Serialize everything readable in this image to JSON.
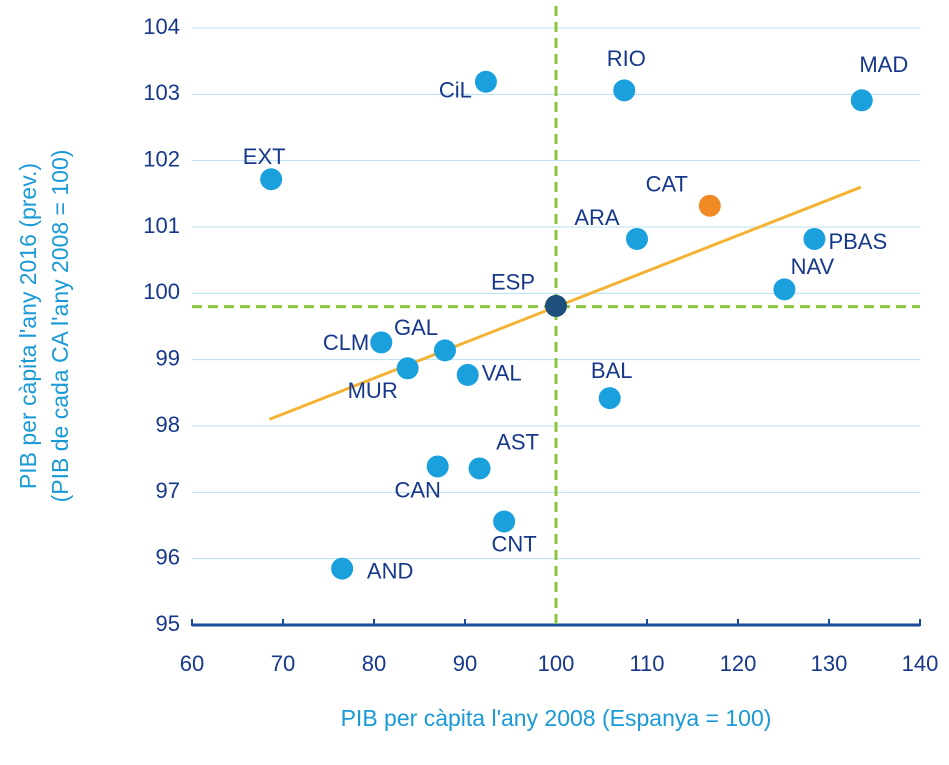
{
  "chart_data": {
    "type": "scatter",
    "x_label": "PIB per càpita l'any 2008 (Espanya = 100)",
    "y_label": [
      "PIB per càpita l'any 2016 (prev.)",
      "(PIB de cada CA l'any  2008 = 100)"
    ],
    "xlim": [
      60,
      140
    ],
    "xticks": [
      60,
      70,
      80,
      90,
      100,
      110,
      120,
      130,
      140
    ],
    "ylim": [
      95,
      104
    ],
    "yticks": [
      95,
      96,
      97,
      98,
      99,
      100,
      101,
      102,
      103,
      104
    ],
    "grid": true,
    "points": [
      {
        "label": "CiL",
        "x": 92.3,
        "y": 103.19,
        "color": "#1aa0dc"
      },
      {
        "label": "RIO",
        "x": 107.5,
        "y": 103.06,
        "color": "#1aa0dc"
      },
      {
        "label": "MAD",
        "x": 133.6,
        "y": 102.91,
        "color": "#1aa0dc"
      },
      {
        "label": "EXT",
        "x": 68.7,
        "y": 101.72,
        "color": "#1aa0dc"
      },
      {
        "label": "CAT",
        "x": 116.9,
        "y": 101.32,
        "color": "#f08a24"
      },
      {
        "label": "ARA",
        "x": 108.9,
        "y": 100.82,
        "color": "#1aa0dc"
      },
      {
        "label": "PBAS",
        "x": 128.4,
        "y": 100.82,
        "color": "#1aa0dc"
      },
      {
        "label": "NAV",
        "x": 125.1,
        "y": 100.06,
        "color": "#1aa0dc"
      },
      {
        "label": "ESP",
        "x": 100,
        "y": 99.81,
        "color": "#1d4f7a"
      },
      {
        "label": "CLM",
        "x": 80.8,
        "y": 99.26,
        "color": "#1aa0dc"
      },
      {
        "label": "GAL",
        "x": 87.8,
        "y": 99.14,
        "color": "#1aa0dc"
      },
      {
        "label": "MUR",
        "x": 83.7,
        "y": 98.87,
        "color": "#1aa0dc"
      },
      {
        "label": "VAL",
        "x": 90.3,
        "y": 98.77,
        "color": "#1aa0dc"
      },
      {
        "label": "BAL",
        "x": 105.9,
        "y": 98.42,
        "color": "#1aa0dc"
      },
      {
        "label": "CAN",
        "x": 87.0,
        "y": 97.39,
        "color": "#1aa0dc"
      },
      {
        "label": "AST",
        "x": 91.6,
        "y": 97.36,
        "color": "#1aa0dc"
      },
      {
        "label": "CNT",
        "x": 94.3,
        "y": 96.56,
        "color": "#1aa0dc"
      },
      {
        "label": "AND",
        "x": 76.5,
        "y": 95.85,
        "color": "#1aa0dc"
      }
    ],
    "trend_line": {
      "x": [
        68.5,
        133.5
      ],
      "y": [
        98.1,
        101.6
      ],
      "color": "#f5b335"
    },
    "reference_lines": {
      "x": 100,
      "y": 99.8,
      "color": "#8cc63f"
    }
  }
}
